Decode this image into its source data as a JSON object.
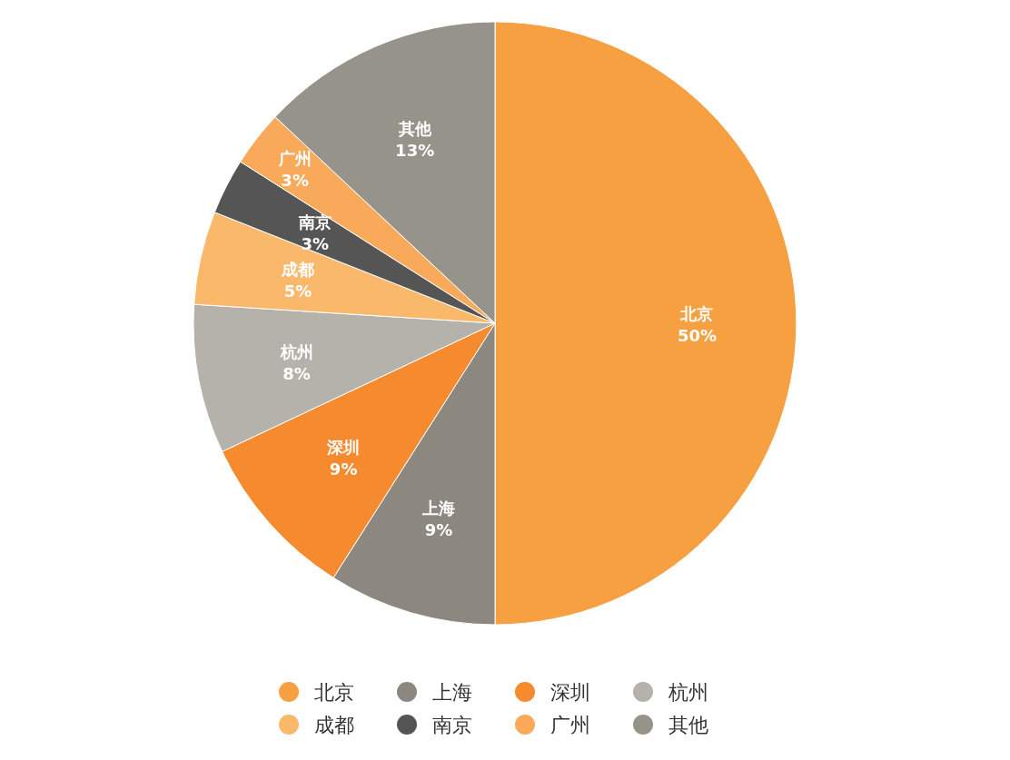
{
  "chart_data": {
    "type": "pie",
    "categories": [
      "北京",
      "上海",
      "深圳",
      "杭州",
      "成都",
      "南京",
      "广州",
      "其他"
    ],
    "values": [
      50,
      9,
      9,
      8,
      5,
      3,
      3,
      13
    ],
    "colors": [
      "#f7a041",
      "#8c8880",
      "#f58a2e",
      "#b5b1ab",
      "#f9b86a",
      "#555555",
      "#f8a95a",
      "#96938b"
    ],
    "value_labels": [
      "50%",
      "9%",
      "9%",
      "8%",
      "5%",
      "3%",
      "3%",
      "13%"
    ],
    "legend": "bottom"
  }
}
